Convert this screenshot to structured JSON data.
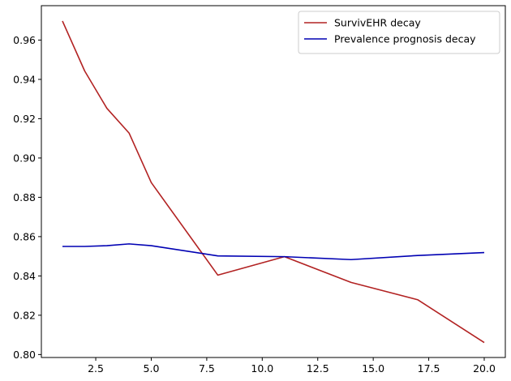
{
  "chart_data": {
    "type": "line",
    "title": "",
    "xlabel": "",
    "ylabel": "",
    "xlim": [
      0.05,
      20.95
    ],
    "ylim": [
      0.7985,
      0.9775
    ],
    "xticks": [
      2.5,
      5.0,
      7.5,
      10.0,
      12.5,
      15.0,
      17.5,
      20.0
    ],
    "xtick_labels": [
      "2.5",
      "5.0",
      "7.5",
      "10.0",
      "12.5",
      "15.0",
      "17.5",
      "20.0"
    ],
    "yticks": [
      0.8,
      0.82,
      0.84,
      0.86,
      0.88,
      0.9,
      0.92,
      0.94,
      0.96
    ],
    "ytick_labels": [
      "0.80",
      "0.82",
      "0.84",
      "0.86",
      "0.88",
      "0.90",
      "0.92",
      "0.94",
      "0.96"
    ],
    "grid": false,
    "legend_position": "top-right",
    "series": [
      {
        "name": "SurvivEHR decay",
        "color": "#b22222",
        "x": [
          1,
          2,
          3,
          4,
          5,
          8,
          11,
          14,
          17,
          20
        ],
        "y": [
          0.9697,
          0.9443,
          0.9253,
          0.9127,
          0.8875,
          0.8404,
          0.8498,
          0.8367,
          0.8279,
          0.8061
        ]
      },
      {
        "name": "Prevalence prognosis decay",
        "color": "#0000b3",
        "x": [
          1,
          2,
          3,
          4,
          5,
          8,
          11,
          14,
          17,
          20
        ],
        "y": [
          0.855,
          0.855,
          0.8554,
          0.8563,
          0.8554,
          0.8502,
          0.8498,
          0.8483,
          0.8504,
          0.8519
        ]
      }
    ]
  }
}
